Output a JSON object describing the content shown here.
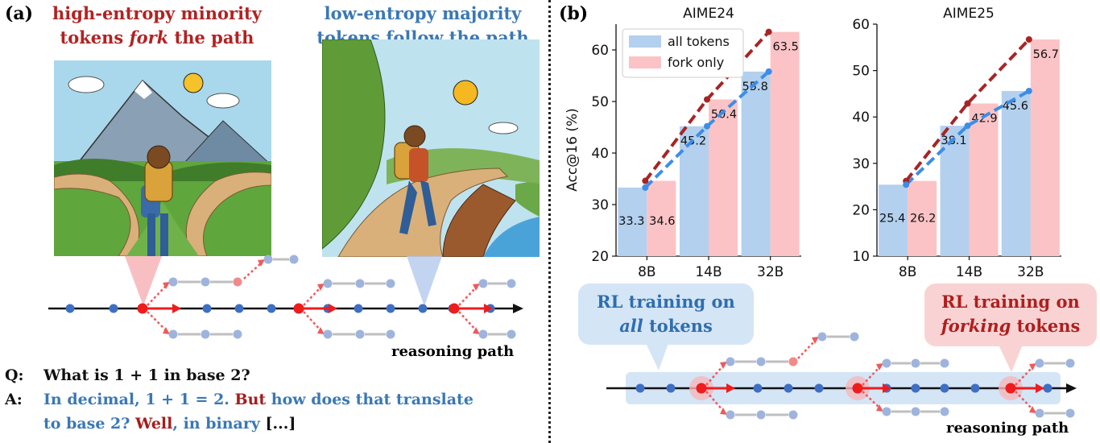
{
  "panel_a": {
    "label": "(a)",
    "title_red_l1": "high-entropy minority",
    "title_red_l2a": "tokens ",
    "title_red_fork": "fork",
    "title_red_l2b": " the path",
    "title_blue_l1": "low-entropy majority",
    "title_blue_l2": "tokens follow the path",
    "path_label": "reasoning path",
    "q_prefix": "Q:",
    "q_text": "What is 1 + 1 in base 2?",
    "a_prefix": "A:",
    "a_part1": "In decimal, 1 + 1 = 2.",
    "a_but": " But",
    "a_part2": " how does that translate",
    "a_part3": "to base 2?",
    "a_well": " Well",
    "a_part4": ", in binary",
    "a_ellipsis": " [...]"
  },
  "panel_b": {
    "label": "(b)",
    "callout_all_l1": "RL training on",
    "callout_all_em": "all",
    "callout_all_l2": " tokens",
    "callout_fork_l1": "RL training on",
    "callout_fork_em": "forking",
    "callout_fork_l2": " tokens",
    "path_label": "reasoning path"
  },
  "colors": {
    "all_bar": "#b3d0ee",
    "fork_bar": "#fbc3c6",
    "all_line": "#3b8ee8",
    "fork_line": "#a82424",
    "token_blue": "#3f6fc4",
    "token_red": "#ee1c1c"
  },
  "chart_data": [
    {
      "type": "bar",
      "title": "AIME24",
      "categories": [
        "8B",
        "14B",
        "32B"
      ],
      "ylabel": "Acc@16 (%)",
      "ylim": [
        20,
        65
      ],
      "yticks": [
        20,
        30,
        40,
        50,
        60
      ],
      "legend": "top-left",
      "series": [
        {
          "name": "all tokens",
          "values": [
            33.3,
            45.2,
            55.8
          ]
        },
        {
          "name": "fork only",
          "values": [
            34.6,
            50.4,
            63.5
          ]
        }
      ]
    },
    {
      "type": "bar",
      "title": "AIME25",
      "categories": [
        "8B",
        "14B",
        "32B"
      ],
      "ylabel": "",
      "ylim": [
        10,
        60
      ],
      "yticks": [
        10,
        20,
        30,
        40,
        50,
        60
      ],
      "series": [
        {
          "name": "all tokens",
          "values": [
            25.4,
            38.1,
            45.6
          ]
        },
        {
          "name": "fork only",
          "values": [
            26.2,
            42.9,
            56.7
          ]
        }
      ]
    }
  ]
}
